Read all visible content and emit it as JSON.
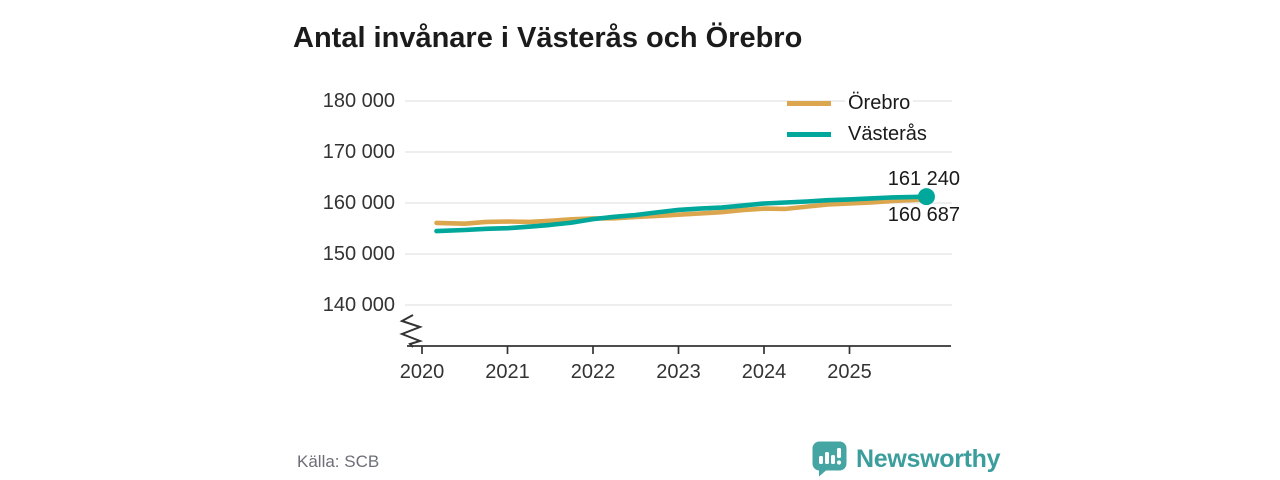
{
  "title": "Antal invånare i Västerås och Örebro",
  "source": {
    "label": "Källa: SCB"
  },
  "branding": {
    "name": "Newsworthy",
    "color": "#3c9d9d"
  },
  "chart_data": {
    "type": "line",
    "title": "Antal invånare i Västerås och Örebro",
    "xlabel": "",
    "ylabel": "",
    "x_range_displayed": [
      2020,
      2026.2
    ],
    "ylim_displayed": [
      140000,
      182000
    ],
    "axis_break_at_bottom": true,
    "grid": true,
    "grid_color": "#e4e4e4",
    "axis_color": "#333333",
    "legend_position": "top-right",
    "y_ticks": [
      {
        "value": 180000,
        "label": "180 000"
      },
      {
        "value": 170000,
        "label": "170 000"
      },
      {
        "value": 160000,
        "label": "160 000"
      },
      {
        "value": 150000,
        "label": "150 000"
      },
      {
        "value": 140000,
        "label": "140 000"
      }
    ],
    "x_ticks": [
      {
        "value": 2020,
        "label": "2020"
      },
      {
        "value": 2021,
        "label": "2021"
      },
      {
        "value": 2022,
        "label": "2022"
      },
      {
        "value": 2023,
        "label": "2023"
      },
      {
        "value": 2024,
        "label": "2024"
      },
      {
        "value": 2025,
        "label": "2025"
      }
    ],
    "series": [
      {
        "name": "Örebro",
        "color": "#dca64f",
        "end_value": 160687,
        "end_label": "160 687",
        "end_marker": false,
        "points": [
          [
            2020.17,
            156100
          ],
          [
            2020.5,
            155950
          ],
          [
            2020.75,
            156300
          ],
          [
            2021.0,
            156380
          ],
          [
            2021.25,
            156300
          ],
          [
            2021.5,
            156500
          ],
          [
            2021.75,
            156800
          ],
          [
            2022.0,
            156990
          ],
          [
            2022.25,
            157000
          ],
          [
            2022.5,
            157250
          ],
          [
            2022.75,
            157450
          ],
          [
            2023.0,
            157700
          ],
          [
            2023.25,
            157950
          ],
          [
            2023.5,
            158200
          ],
          [
            2023.75,
            158600
          ],
          [
            2024.0,
            158900
          ],
          [
            2024.25,
            158850
          ],
          [
            2024.5,
            159300
          ],
          [
            2024.75,
            159700
          ],
          [
            2025.0,
            159900
          ],
          [
            2025.25,
            160100
          ],
          [
            2025.5,
            160400
          ],
          [
            2025.9,
            160687
          ]
        ]
      },
      {
        "name": "Västerås",
        "color": "#00a79b",
        "end_value": 161240,
        "end_label": "161 240",
        "end_marker": true,
        "points": [
          [
            2020.17,
            154500
          ],
          [
            2020.5,
            154700
          ],
          [
            2020.75,
            154950
          ],
          [
            2021.0,
            155050
          ],
          [
            2021.25,
            155350
          ],
          [
            2021.5,
            155700
          ],
          [
            2021.75,
            156150
          ],
          [
            2022.0,
            156850
          ],
          [
            2022.25,
            157300
          ],
          [
            2022.5,
            157650
          ],
          [
            2022.75,
            158150
          ],
          [
            2023.0,
            158650
          ],
          [
            2023.25,
            158900
          ],
          [
            2023.5,
            159100
          ],
          [
            2023.75,
            159500
          ],
          [
            2024.0,
            159900
          ],
          [
            2024.25,
            160100
          ],
          [
            2024.5,
            160300
          ],
          [
            2024.75,
            160550
          ],
          [
            2025.0,
            160700
          ],
          [
            2025.25,
            160900
          ],
          [
            2025.5,
            161100
          ],
          [
            2025.9,
            161240
          ]
        ]
      }
    ]
  }
}
